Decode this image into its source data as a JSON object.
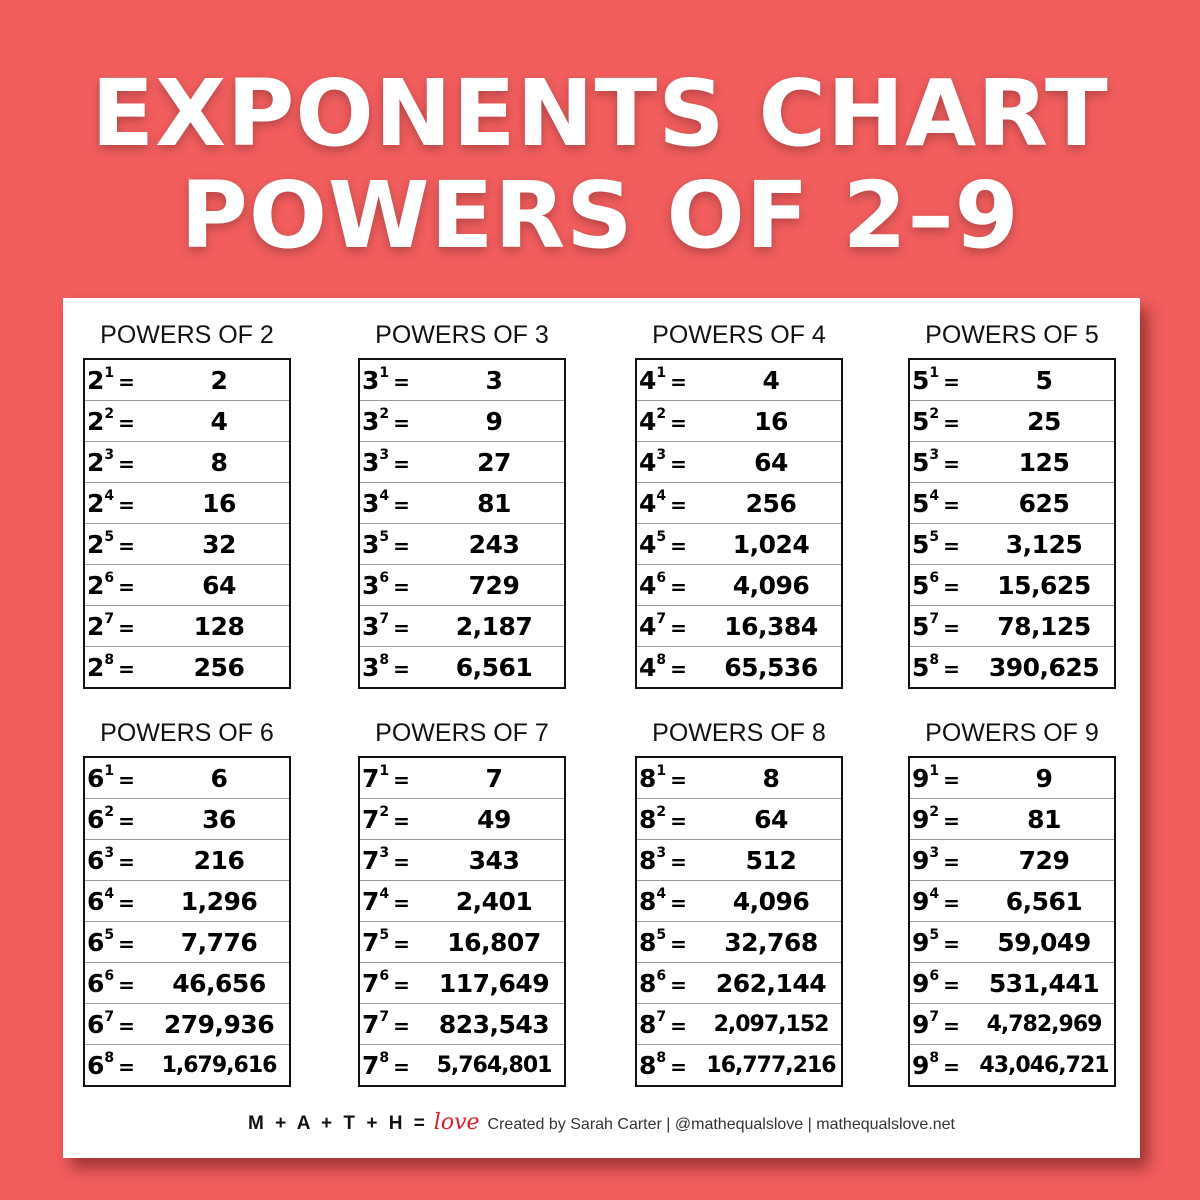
{
  "title_line1": "EXPONENTS CHART",
  "title_line2": "POWERS OF 2–9",
  "colors": {
    "background": "#f25d5d",
    "card": "#ffffff",
    "love": "#d81e2a"
  },
  "tables": [
    {
      "heading": "POWERS OF 2",
      "base": "2",
      "values": [
        "2",
        "4",
        "8",
        "16",
        "32",
        "64",
        "128",
        "256"
      ]
    },
    {
      "heading": "POWERS OF 3",
      "base": "3",
      "values": [
        "3",
        "9",
        "27",
        "81",
        "243",
        "729",
        "2,187",
        "6,561"
      ]
    },
    {
      "heading": "POWERS OF 4",
      "base": "4",
      "values": [
        "4",
        "16",
        "64",
        "256",
        "1,024",
        "4,096",
        "16,384",
        "65,536"
      ]
    },
    {
      "heading": "POWERS OF 5",
      "base": "5",
      "values": [
        "5",
        "25",
        "125",
        "625",
        "3,125",
        "15,625",
        "78,125",
        "390,625"
      ]
    },
    {
      "heading": "POWERS OF 6",
      "base": "6",
      "values": [
        "6",
        "36",
        "216",
        "1,296",
        "7,776",
        "46,656",
        "279,936",
        "1,679,616"
      ]
    },
    {
      "heading": "POWERS OF 7",
      "base": "7",
      "values": [
        "7",
        "49",
        "343",
        "2,401",
        "16,807",
        "117,649",
        "823,543",
        "5,764,801"
      ]
    },
    {
      "heading": "POWERS OF 8",
      "base": "8",
      "values": [
        "8",
        "64",
        "512",
        "4,096",
        "32,768",
        "262,144",
        "2,097,152",
        "16,777,216"
      ]
    },
    {
      "heading": "POWERS OF 9",
      "base": "9",
      "values": [
        "9",
        "81",
        "729",
        "6,561",
        "59,049",
        "531,441",
        "4,782,969",
        "43,046,721"
      ]
    }
  ],
  "exponents": [
    "1",
    "2",
    "3",
    "4",
    "5",
    "6",
    "7",
    "8"
  ],
  "equals": "=",
  "footer": {
    "logo": "M + A + T + H =",
    "logo_love": "love",
    "credit": "Created by Sarah Carter | @mathequalslove | mathequalslove.net"
  }
}
